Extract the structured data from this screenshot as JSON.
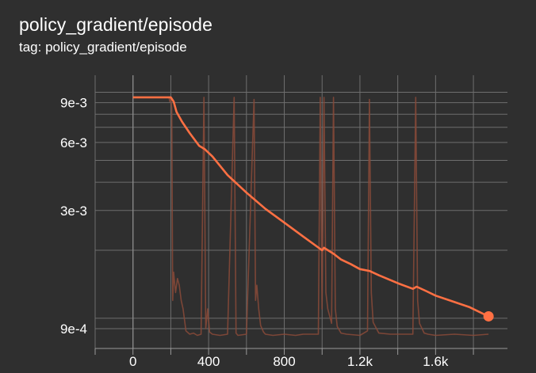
{
  "card": {
    "title": "policy_gradient/episode",
    "tag": "tag: policy_gradient/episode"
  },
  "colors": {
    "background": "#2f2f2f",
    "grid": "#6e6e6e",
    "smoothed": "#ff7043",
    "raw": "#8a4a38"
  },
  "chart_data": {
    "type": "line",
    "title": "policy_gradient/episode",
    "xlabel": "",
    "ylabel": "",
    "yscale": "log",
    "xlim": [
      -200,
      1980
    ],
    "ylim": [
      0.00083,
      0.0119
    ],
    "grid": true,
    "x_ticks": [
      {
        "value": 0,
        "label": "0"
      },
      {
        "value": 400,
        "label": "400"
      },
      {
        "value": 800,
        "label": "800"
      },
      {
        "value": 1200,
        "label": "1.2k"
      },
      {
        "value": 1600,
        "label": "1.6k"
      }
    ],
    "y_ticks": [
      {
        "value": 0.009,
        "label": "9e-3"
      },
      {
        "value": 0.006,
        "label": "6e-3"
      },
      {
        "value": 0.003,
        "label": "3e-3"
      },
      {
        "value": 0.0009,
        "label": "9e-4"
      }
    ],
    "series": [
      {
        "role": "smoothed",
        "x": [
          0,
          200,
          215,
          230,
          260,
          300,
          350,
          380,
          420,
          500,
          600,
          700,
          800,
          900,
          1000,
          1010,
          1060,
          1100,
          1150,
          1200,
          1250,
          1300,
          1400,
          1480,
          1500,
          1550,
          1600,
          1700,
          1780,
          1880
        ],
        "y": [
          0.0095,
          0.0095,
          0.0091,
          0.0082,
          0.0074,
          0.0066,
          0.0058,
          0.0056,
          0.0052,
          0.0043,
          0.0036,
          0.00305,
          0.00265,
          0.0023,
          0.002,
          0.00205,
          0.00193,
          0.00182,
          0.00174,
          0.00165,
          0.00162,
          0.00155,
          0.00143,
          0.00135,
          0.00138,
          0.00132,
          0.00126,
          0.00118,
          0.00112,
          0.00102
        ]
      },
      {
        "role": "raw",
        "x": [
          0,
          190,
          195,
          200,
          205,
          210,
          215,
          225,
          235,
          245,
          255,
          265,
          280,
          300,
          320,
          340,
          360,
          375,
          385,
          395,
          405,
          420,
          460,
          500,
          535,
          545,
          555,
          600,
          640,
          648,
          655,
          665,
          675,
          690,
          700,
          740,
          800,
          860,
          900,
          980,
          990,
          1000,
          1010,
          1020,
          1030,
          1050,
          1060,
          1070,
          1080,
          1100,
          1130,
          1200,
          1240,
          1250,
          1260,
          1270,
          1300,
          1360,
          1480,
          1495,
          1505,
          1515,
          1540,
          1560,
          1600,
          1700,
          1800,
          1880
        ],
        "y": [
          0.0095,
          0.0095,
          0.0091,
          0.0095,
          0.0085,
          0.0012,
          0.0016,
          0.0013,
          0.0015,
          0.0014,
          0.0012,
          0.0011,
          0.00088,
          0.00085,
          0.00086,
          0.00084,
          0.00085,
          0.0095,
          0.0009,
          0.0011,
          0.00087,
          0.00085,
          0.00084,
          0.00085,
          0.0095,
          0.00086,
          0.00084,
          0.00085,
          0.0093,
          0.0012,
          0.0014,
          0.0011,
          0.00093,
          0.00087,
          0.00085,
          0.00084,
          0.00085,
          0.00084,
          0.00085,
          0.00085,
          0.0095,
          0.0011,
          0.0095,
          0.0013,
          0.0011,
          0.00095,
          0.0095,
          0.0011,
          0.00092,
          0.00086,
          0.00085,
          0.00084,
          0.00088,
          0.0093,
          0.0013,
          0.00096,
          0.00086,
          0.00085,
          0.00085,
          0.0095,
          0.0012,
          0.00095,
          0.00086,
          0.00085,
          0.00084,
          0.00085,
          0.00084,
          0.00085
        ]
      }
    ]
  }
}
